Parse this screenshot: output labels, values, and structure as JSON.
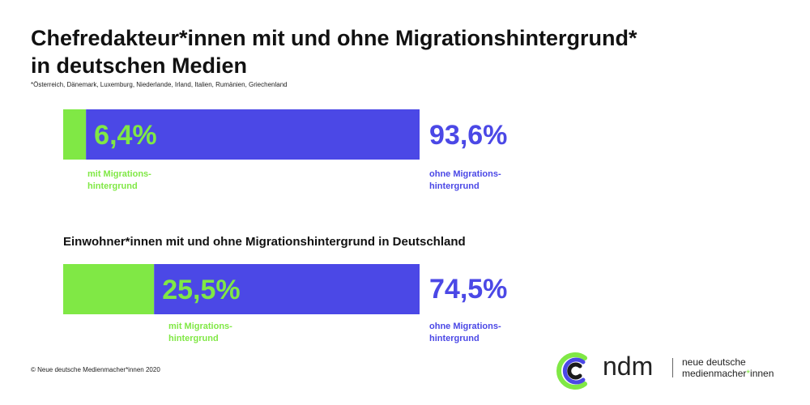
{
  "title": {
    "line1": "Chefredakteur*innen mit und ohne Migrationshintergrund*",
    "line2": "in deutschen Medien"
  },
  "footnote": "*Österreich, Dänemark, Luxemburg, Niederlande, Irland, Italien, Rumänien, Griechenland",
  "subtitle": "Einwohner*innen mit und ohne Migrationshintergrund in Deutschland",
  "colors": {
    "green": "#80e845",
    "blue": "#4b48e6"
  },
  "chart_data": [
    {
      "type": "bar",
      "orientation": "horizontal",
      "stacked": true,
      "title": "Chefredakteur*innen mit und ohne Migrationshintergrund* in deutschen Medien",
      "series": [
        {
          "name": "mit Migrations-hintergrund",
          "value": 6.4,
          "label": "6,4%",
          "color": "#80e845"
        },
        {
          "name": "ohne Migrations-hintergrund",
          "value": 93.6,
          "label": "93,6%",
          "color": "#4b48e6"
        }
      ],
      "labels": {
        "mit": [
          "mit Migrations-",
          "hintergrund"
        ],
        "ohne": [
          "ohne Migrations-",
          "hintergrund"
        ]
      }
    },
    {
      "type": "bar",
      "orientation": "horizontal",
      "stacked": true,
      "title": "Einwohner*innen mit und ohne Migrationshintergrund in Deutschland",
      "series": [
        {
          "name": "mit Migrations-hintergrund",
          "value": 25.5,
          "label": "25,5%",
          "color": "#80e845"
        },
        {
          "name": "ohne Migrations-hintergrund",
          "value": 74.5,
          "label": "74,5%",
          "color": "#4b48e6"
        }
      ],
      "labels": {
        "mit": [
          "mit Migrations-",
          "hintergrund"
        ],
        "ohne": [
          "ohne Migrations-",
          "hintergrund"
        ]
      }
    }
  ],
  "copyright": "© Neue deutsche Medienmacher*innen 2020",
  "logo": {
    "wordmark": "ndm",
    "tagline_line1": "neue deutsche",
    "tagline_line2_pre": "medienmacher",
    "tagline_line2_star": "*",
    "tagline_line2_post": "innen"
  }
}
